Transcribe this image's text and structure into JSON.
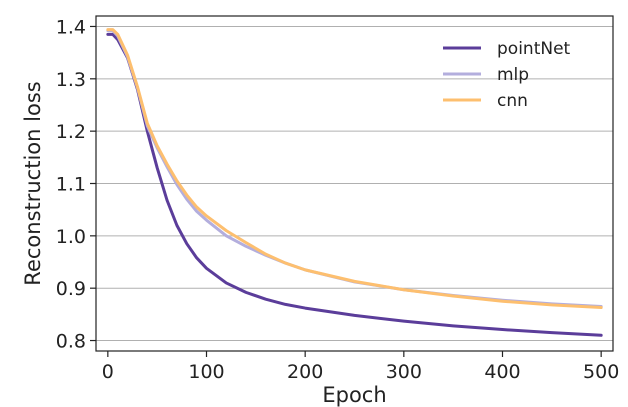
{
  "chart_data": {
    "type": "line",
    "title": "",
    "xlabel": "Epoch",
    "ylabel": "Reconstruction loss",
    "xlim": [
      -12,
      512
    ],
    "ylim": [
      0.78,
      1.42
    ],
    "xticks": [
      0,
      100,
      200,
      300,
      400,
      500
    ],
    "xtick_labels": [
      "0",
      "100",
      "200",
      "300",
      "400",
      "500"
    ],
    "yticks": [
      0.8,
      0.9,
      1.0,
      1.1,
      1.2,
      1.3,
      1.4
    ],
    "ytick_labels": [
      "0.8",
      "0.9",
      "1.0",
      "1.1",
      "1.2",
      "1.3",
      "1.4"
    ],
    "grid": "horizontal",
    "legend_position": "top-right",
    "series": [
      {
        "name": "pointNet",
        "color": "#5b3d9a",
        "x": [
          0,
          5,
          10,
          20,
          30,
          40,
          50,
          60,
          70,
          80,
          90,
          100,
          120,
          140,
          160,
          180,
          200,
          250,
          300,
          350,
          400,
          450,
          500
        ],
        "y": [
          1.385,
          1.385,
          1.375,
          1.34,
          1.28,
          1.2,
          1.13,
          1.068,
          1.02,
          0.985,
          0.958,
          0.938,
          0.91,
          0.892,
          0.879,
          0.869,
          0.862,
          0.848,
          0.837,
          0.828,
          0.821,
          0.815,
          0.81
        ]
      },
      {
        "name": "mlp",
        "color": "#b3aedd",
        "x": [
          0,
          5,
          10,
          20,
          30,
          40,
          50,
          60,
          70,
          80,
          90,
          100,
          120,
          140,
          160,
          180,
          200,
          250,
          300,
          350,
          400,
          450,
          500
        ],
        "y": [
          1.392,
          1.392,
          1.382,
          1.342,
          1.283,
          1.21,
          1.168,
          1.132,
          1.098,
          1.07,
          1.047,
          1.03,
          1.0,
          0.98,
          0.963,
          0.948,
          0.935,
          0.912,
          0.897,
          0.886,
          0.877,
          0.87,
          0.865
        ]
      },
      {
        "name": "cnn",
        "color": "#fdbf6f",
        "x": [
          0,
          5,
          10,
          20,
          30,
          40,
          50,
          60,
          70,
          80,
          90,
          100,
          120,
          140,
          160,
          180,
          200,
          250,
          300,
          350,
          400,
          450,
          500
        ],
        "y": [
          1.394,
          1.394,
          1.385,
          1.345,
          1.285,
          1.215,
          1.172,
          1.137,
          1.105,
          1.078,
          1.055,
          1.038,
          1.01,
          0.987,
          0.965,
          0.948,
          0.935,
          0.913,
          0.897,
          0.885,
          0.875,
          0.868,
          0.863
        ]
      }
    ]
  }
}
